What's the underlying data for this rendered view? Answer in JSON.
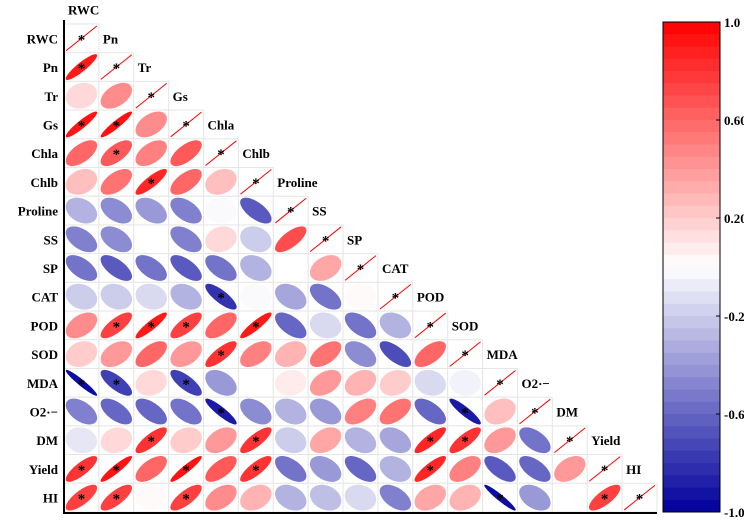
{
  "chart_data": {
    "type": "heatmap",
    "subtype": "correlation-ellipse-lower-triangle",
    "variables": [
      "RWC",
      "Pn",
      "Tr",
      "Gs",
      "Chla",
      "Chlb",
      "Proline",
      "SS",
      "SP",
      "CAT",
      "POD",
      "SOD",
      "MDA",
      "O2·−",
      "DM",
      "Yield",
      "HI"
    ],
    "lower_triangle": [
      [],
      [
        0.9
      ],
      [
        0.15,
        0.45
      ],
      [
        0.92,
        0.93,
        0.45
      ],
      [
        0.6,
        0.65,
        0.5,
        0.65
      ],
      [
        0.25,
        0.55,
        0.85,
        0.6,
        0.25
      ],
      [
        -0.3,
        -0.45,
        -0.4,
        -0.5,
        -0.02,
        -0.65
      ],
      [
        -0.5,
        -0.45,
        0.0,
        -0.5,
        0.15,
        -0.2,
        0.7
      ],
      [
        -0.55,
        -0.65,
        -0.55,
        -0.65,
        -0.55,
        -0.3,
        0.0,
        0.35
      ],
      [
        -0.2,
        -0.2,
        -0.15,
        -0.3,
        -0.8,
        -0.02,
        -0.35,
        -0.55,
        0.02
      ],
      [
        0.45,
        0.75,
        0.9,
        0.75,
        0.6,
        0.9,
        -0.6,
        -0.15,
        -0.55,
        -0.3
      ],
      [
        0.2,
        0.4,
        0.6,
        0.4,
        0.8,
        0.5,
        0.3,
        0.55,
        -0.45,
        -0.7,
        0.6
      ],
      [
        -0.95,
        -0.75,
        0.15,
        -0.75,
        -0.4,
        0.0,
        0.08,
        0.4,
        0.3,
        0.2,
        -0.15,
        -0.05
      ],
      [
        -0.5,
        -0.6,
        -0.6,
        -0.55,
        -0.9,
        -0.45,
        -0.3,
        -0.4,
        0.5,
        0.55,
        -0.6,
        -0.9,
        0.25
      ],
      [
        -0.1,
        0.15,
        0.8,
        0.2,
        0.4,
        0.8,
        -0.2,
        0.35,
        -0.3,
        -0.35,
        0.85,
        0.8,
        0.4,
        -0.55
      ],
      [
        0.8,
        0.92,
        0.6,
        0.93,
        0.65,
        0.8,
        -0.55,
        -0.4,
        -0.6,
        -0.3,
        0.85,
        0.5,
        -0.65,
        -0.6,
        0.4
      ],
      [
        0.75,
        0.75,
        0.02,
        0.75,
        0.45,
        0.3,
        -0.3,
        -0.25,
        -0.15,
        -0.5,
        0.35,
        0.3,
        -0.95,
        -0.4,
        0.0,
        0.75
      ]
    ],
    "significant_columns": [
      [],
      [
        0
      ],
      [],
      [
        0,
        1
      ],
      [
        1
      ],
      [
        2
      ],
      [],
      [],
      [],
      [
        4
      ],
      [
        1,
        2,
        3,
        5
      ],
      [
        4
      ],
      [
        0,
        1,
        3
      ],
      [
        4,
        11
      ],
      [
        2,
        5,
        10,
        11
      ],
      [
        0,
        1,
        3,
        5,
        10
      ],
      [
        0,
        1,
        3,
        12,
        15
      ]
    ],
    "significance_marker": "*",
    "diagonal": 1.0,
    "colorbar": {
      "range": [
        -1.0,
        1.0
      ],
      "tick_labels": [
        "1.0",
        "0.60",
        "0.20",
        "-0.20",
        "-0.60",
        "-1.0"
      ],
      "tick_values": [
        1.0,
        0.6,
        0.2,
        -0.2,
        -0.6,
        -1.0
      ],
      "placement": "right"
    },
    "colors": {
      "negative": "#00009C",
      "zero": "#FFFFFF",
      "positive": "#FF0000",
      "grid": "#E6E6E6"
    }
  }
}
